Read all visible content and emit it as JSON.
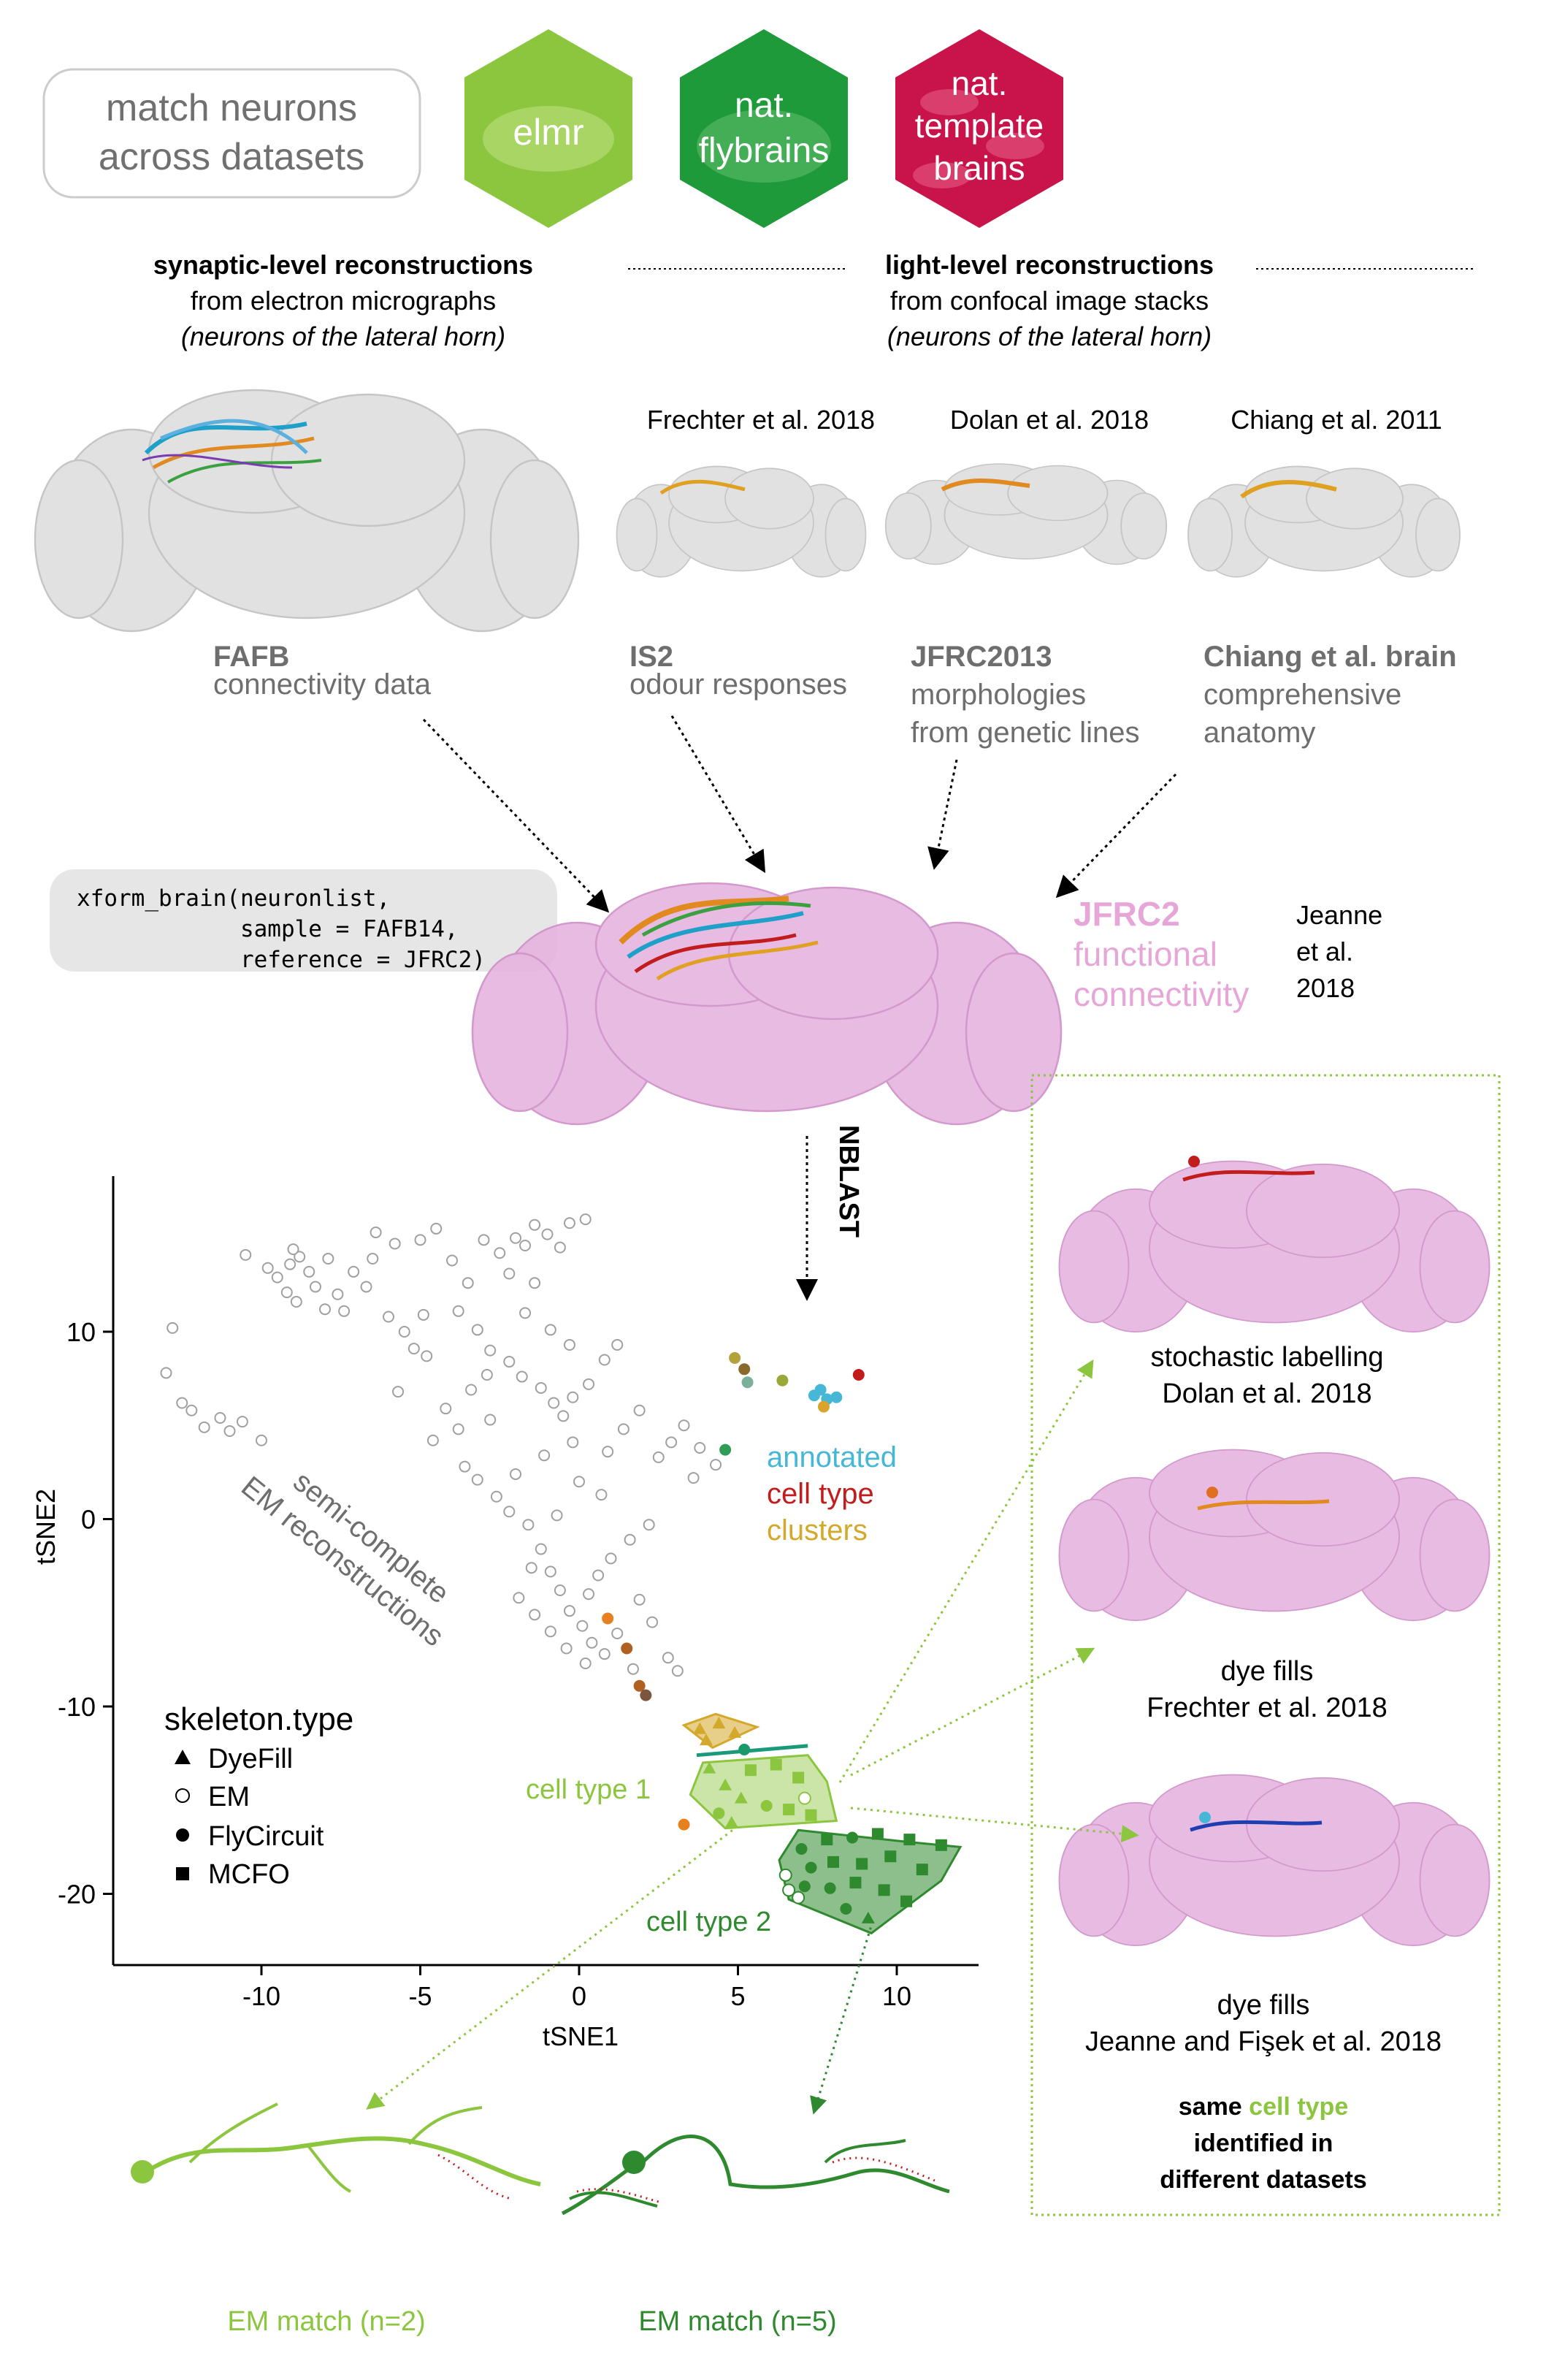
{
  "header": {
    "pill_line1": "match neurons",
    "pill_line2": "across datasets",
    "hex_elmr": "elmr",
    "hex_flybrains_l1": "nat.",
    "hex_flybrains_l2": "flybrains",
    "hex_templates_l1": "nat.",
    "hex_templates_l2": "template",
    "hex_templates_l3": "brains"
  },
  "em_section": {
    "title": "synaptic-level reconstructions",
    "line2": "from electron micrographs",
    "line3": "(neurons of the lateral horn)"
  },
  "lm_section": {
    "title": "light-level reconstructions",
    "line2": "from confocal image stacks",
    "line3": "(neurons of the lateral horn)"
  },
  "datasets": [
    {
      "citation": "",
      "brain": "FAFB",
      "desc1": "connectivity data",
      "desc2": ""
    },
    {
      "citation": "Frechter et al. 2018",
      "brain": "IS2",
      "desc1": "odour responses",
      "desc2": ""
    },
    {
      "citation": "Dolan et al. 2018",
      "brain": "JFRC2013",
      "desc1": "morphologies",
      "desc2": "from genetic lines"
    },
    {
      "citation": "Chiang et al. 2011",
      "brain": "Chiang et al. brain",
      "desc1": "comprehensive",
      "desc2": "anatomy"
    }
  ],
  "code": {
    "line1": "xform_brain(neuronlist,",
    "line2": "            sample = FAFB14,",
    "line3": "            reference = JFRC2)"
  },
  "jfrc2": {
    "l1": "JFRC2",
    "l2": "functional",
    "l3": "connectivity",
    "cite1": "Jeanne",
    "cite2": "et al.",
    "cite3": "2018"
  },
  "nblast_label": "NBLAST",
  "plot": {
    "ylabel": "tSNE2",
    "xlabel": "tSNE1",
    "legend_title": "skeleton.type",
    "legend_items": [
      "DyeFill",
      "EM",
      "FlyCircuit",
      "MCFO"
    ],
    "annot1": "annotated",
    "annot2": "cell type",
    "annot3": "clusters",
    "semi1": "semi-complete",
    "semi2": "EM reconstructions",
    "cell_type1": "cell type 1",
    "cell_type2": "cell type 2"
  },
  "chart_data": {
    "type": "scatter",
    "xlabel": "tSNE1",
    "ylabel": "tSNE2",
    "xlim": [
      -14,
      14
    ],
    "ylim": [
      -24,
      18
    ],
    "xticks": [
      -10,
      -5,
      0,
      5,
      10
    ],
    "yticks": [
      10,
      0,
      -10,
      -20
    ],
    "em_points": [
      [
        -13.0,
        7.8
      ],
      [
        -12.8,
        10.2
      ],
      [
        -12.5,
        6.2
      ],
      [
        -12.2,
        5.8
      ],
      [
        -11.8,
        4.9
      ],
      [
        -11.3,
        5.4
      ],
      [
        -11.0,
        4.7
      ],
      [
        -10.6,
        5.2
      ],
      [
        -10.0,
        4.2
      ],
      [
        -10.5,
        14.1
      ],
      [
        -9.8,
        13.4
      ],
      [
        -9.5,
        12.9
      ],
      [
        -9.1,
        13.6
      ],
      [
        -8.8,
        14.0
      ],
      [
        -8.5,
        13.2
      ],
      [
        -9.2,
        12.1
      ],
      [
        -8.9,
        11.6
      ],
      [
        -8.3,
        12.4
      ],
      [
        -8.0,
        11.2
      ],
      [
        -7.6,
        12.0
      ],
      [
        -7.4,
        11.1
      ],
      [
        -7.1,
        13.2
      ],
      [
        -6.5,
        13.9
      ],
      [
        -6.0,
        10.8
      ],
      [
        -5.5,
        10.0
      ],
      [
        -5.2,
        9.1
      ],
      [
        -4.8,
        8.7
      ],
      [
        -6.4,
        15.3
      ],
      [
        -5.8,
        14.7
      ],
      [
        -5.0,
        14.9
      ],
      [
        -4.5,
        15.5
      ],
      [
        -4.0,
        13.8
      ],
      [
        -3.5,
        12.6
      ],
      [
        -3.0,
        14.9
      ],
      [
        -2.5,
        14.2
      ],
      [
        -2.0,
        15.0
      ],
      [
        -1.7,
        14.6
      ],
      [
        -1.4,
        15.7
      ],
      [
        -1.0,
        15.2
      ],
      [
        -0.6,
        14.5
      ],
      [
        -0.3,
        15.8
      ],
      [
        0.2,
        16.0
      ],
      [
        -3.8,
        11.1
      ],
      [
        -3.2,
        10.1
      ],
      [
        -2.8,
        9.0
      ],
      [
        -2.2,
        8.4
      ],
      [
        -1.8,
        7.6
      ],
      [
        -1.2,
        7.0
      ],
      [
        -0.8,
        6.2
      ],
      [
        -0.5,
        5.5
      ],
      [
        -0.2,
        6.5
      ],
      [
        0.3,
        7.2
      ],
      [
        0.8,
        8.5
      ],
      [
        1.2,
        9.3
      ],
      [
        -4.2,
        5.9
      ],
      [
        -3.8,
        4.8
      ],
      [
        -3.6,
        2.8
      ],
      [
        -3.2,
        2.1
      ],
      [
        -2.6,
        1.2
      ],
      [
        -2.2,
        0.4
      ],
      [
        -1.6,
        -0.3
      ],
      [
        -1.2,
        -1.6
      ],
      [
        -0.9,
        -2.8
      ],
      [
        -0.6,
        -3.8
      ],
      [
        -0.3,
        -4.9
      ],
      [
        0.1,
        -5.7
      ],
      [
        0.4,
        -6.6
      ],
      [
        0.8,
        -7.2
      ],
      [
        1.2,
        -6.1
      ],
      [
        -1.9,
        -4.2
      ],
      [
        -1.4,
        -5.1
      ],
      [
        -0.9,
        -6.0
      ],
      [
        -0.4,
        -6.9
      ],
      [
        0.3,
        -4.0
      ],
      [
        0.6,
        -3.0
      ],
      [
        1.0,
        -2.1
      ],
      [
        1.6,
        -1.1
      ],
      [
        2.2,
        -0.3
      ],
      [
        1.9,
        -4.3
      ],
      [
        2.3,
        -5.5
      ],
      [
        2.8,
        -7.4
      ],
      [
        3.1,
        -8.1
      ],
      [
        2.5,
        3.3
      ],
      [
        2.9,
        4.1
      ],
      [
        3.3,
        5.0
      ],
      [
        3.8,
        3.8
      ],
      [
        4.3,
        2.9
      ],
      [
        1.9,
        5.8
      ],
      [
        1.4,
        4.8
      ],
      [
        0.9,
        3.6
      ],
      [
        -0.2,
        4.1
      ],
      [
        -1.1,
        3.4
      ],
      [
        -2.8,
        5.3
      ],
      [
        -3.4,
        6.9
      ],
      [
        -2.9,
        7.7
      ],
      [
        -1.7,
        11.0
      ],
      [
        -0.9,
        10.1
      ],
      [
        -0.3,
        9.3
      ],
      [
        -1.4,
        12.6
      ],
      [
        -2.2,
        13.1
      ],
      [
        -4.9,
        10.9
      ],
      [
        -6.7,
        12.4
      ],
      [
        -7.9,
        13.9
      ],
      [
        -9.0,
        14.4
      ],
      [
        -5.7,
        6.8
      ],
      [
        -4.6,
        4.2
      ],
      [
        -2.0,
        2.4
      ],
      [
        0.0,
        2.0
      ],
      [
        0.7,
        1.3
      ],
      [
        -0.7,
        0.2
      ],
      [
        -1.5,
        -2.6
      ],
      [
        0.2,
        -7.7
      ],
      [
        1.7,
        -8.0
      ],
      [
        3.6,
        2.2
      ]
    ],
    "coloured_points": [
      {
        "x": 4.9,
        "y": 8.6,
        "color": "#b3a23c"
      },
      {
        "x": 5.2,
        "y": 8.0,
        "color": "#8a6a2c"
      },
      {
        "x": 5.3,
        "y": 7.3,
        "color": "#7bb09a"
      },
      {
        "x": 6.4,
        "y": 7.4,
        "color": "#9aa83a"
      },
      {
        "x": 7.4,
        "y": 6.6,
        "color": "#46b7d6"
      },
      {
        "x": 7.6,
        "y": 6.9,
        "color": "#46b7d6"
      },
      {
        "x": 7.8,
        "y": 6.4,
        "color": "#46b7d6"
      },
      {
        "x": 7.7,
        "y": 6.0,
        "color": "#d9a42a"
      },
      {
        "x": 8.1,
        "y": 6.5,
        "color": "#46b7d6"
      },
      {
        "x": 8.8,
        "y": 7.7,
        "color": "#c21d1d"
      },
      {
        "x": 4.6,
        "y": 3.7,
        "color": "#2f9c57"
      },
      {
        "x": 0.9,
        "y": -5.3,
        "color": "#e7801e"
      },
      {
        "x": 1.5,
        "y": -6.9,
        "color": "#b06020"
      },
      {
        "x": 1.9,
        "y": -8.9,
        "color": "#b06020"
      },
      {
        "x": 2.1,
        "y": -9.4,
        "color": "#7a5640"
      },
      {
        "x": 3.3,
        "y": -16.3,
        "color": "#e7801e"
      },
      {
        "x": 5.2,
        "y": -12.3,
        "color": "#1a9a6a"
      }
    ],
    "cluster_1": {
      "color": "#8cc63f",
      "hull": [
        [
          3.9,
          -13.0
        ],
        [
          7.2,
          -12.6
        ],
        [
          7.8,
          -14.0
        ],
        [
          8.1,
          -16.1
        ],
        [
          4.6,
          -16.5
        ],
        [
          3.5,
          -14.7
        ]
      ],
      "points": [
        {
          "x": 4.1,
          "y": -13.3,
          "s": "tri"
        },
        {
          "x": 4.6,
          "y": -14.2,
          "s": "tri"
        },
        {
          "x": 5.4,
          "y": -13.4,
          "s": "sq"
        },
        {
          "x": 6.2,
          "y": -13.1,
          "s": "sq"
        },
        {
          "x": 6.9,
          "y": -13.8,
          "s": "sq"
        },
        {
          "x": 5.1,
          "y": -14.9,
          "s": "tri"
        },
        {
          "x": 5.9,
          "y": -15.3,
          "s": "circ"
        },
        {
          "x": 6.6,
          "y": -15.5,
          "s": "sq"
        },
        {
          "x": 4.4,
          "y": -15.7,
          "s": "circ"
        },
        {
          "x": 7.3,
          "y": -15.8,
          "s": "sq"
        },
        {
          "x": 4.8,
          "y": -16.2,
          "s": "tri"
        },
        {
          "x": 7.1,
          "y": -14.9,
          "s": "open"
        }
      ]
    },
    "cluster_2": {
      "color": "#2f8a2f",
      "hull": [
        [
          6.9,
          -16.6
        ],
        [
          10.2,
          -17.2
        ],
        [
          12.0,
          -17.5
        ],
        [
          11.4,
          -19.3
        ],
        [
          9.9,
          -21.2
        ],
        [
          9.2,
          -22.1
        ],
        [
          6.6,
          -20.3
        ],
        [
          6.3,
          -18.2
        ]
      ],
      "points": [
        {
          "x": 7.0,
          "y": -17.6,
          "s": "circ"
        },
        {
          "x": 7.8,
          "y": -17.1,
          "s": "sq"
        },
        {
          "x": 8.6,
          "y": -17.0,
          "s": "circ"
        },
        {
          "x": 9.4,
          "y": -16.8,
          "s": "sq"
        },
        {
          "x": 10.4,
          "y": -17.1,
          "s": "sq"
        },
        {
          "x": 11.4,
          "y": -17.4,
          "s": "sq"
        },
        {
          "x": 7.3,
          "y": -18.6,
          "s": "circ"
        },
        {
          "x": 8.0,
          "y": -18.3,
          "s": "sq"
        },
        {
          "x": 8.9,
          "y": -18.4,
          "s": "sq"
        },
        {
          "x": 9.8,
          "y": -18.0,
          "s": "sq"
        },
        {
          "x": 10.8,
          "y": -18.7,
          "s": "sq"
        },
        {
          "x": 7.1,
          "y": -19.6,
          "s": "circ"
        },
        {
          "x": 7.9,
          "y": -19.7,
          "s": "circ"
        },
        {
          "x": 8.7,
          "y": -19.4,
          "s": "sq"
        },
        {
          "x": 9.6,
          "y": -19.8,
          "s": "sq"
        },
        {
          "x": 10.3,
          "y": -20.4,
          "s": "sq"
        },
        {
          "x": 8.4,
          "y": -20.8,
          "s": "circ"
        },
        {
          "x": 9.1,
          "y": -21.3,
          "s": "tri"
        },
        {
          "x": 6.5,
          "y": -19.0,
          "s": "open"
        },
        {
          "x": 6.6,
          "y": -19.8,
          "s": "open"
        },
        {
          "x": 6.9,
          "y": -20.2,
          "s": "open"
        }
      ]
    },
    "cluster_yellow": {
      "color": "#d4a82a",
      "hull": [
        [
          3.3,
          -11.0
        ],
        [
          4.3,
          -10.4
        ],
        [
          5.6,
          -11.1
        ],
        [
          4.2,
          -12.2
        ]
      ],
      "points": [
        {
          "x": 3.8,
          "y": -11.2,
          "s": "tri"
        },
        {
          "x": 4.4,
          "y": -10.9,
          "s": "tri"
        },
        {
          "x": 4.9,
          "y": -11.4,
          "s": "tri"
        },
        {
          "x": 4.0,
          "y": -11.8,
          "s": "tri"
        }
      ]
    },
    "cluster_teal": {
      "color": "#1a9a7a",
      "segment": [
        [
          3.7,
          -12.6
        ],
        [
          7.2,
          -12.1
        ]
      ]
    }
  },
  "panels": [
    {
      "l1": "stochastic labelling",
      "l2": "Dolan et al. 2018"
    },
    {
      "l1": "dye fills",
      "l2": "Frechter et al. 2018"
    },
    {
      "l1": "dye fills",
      "l2": "Jeanne and Fişek et al. 2018"
    }
  ],
  "same_cell": {
    "l1a": "same ",
    "l1b": "cell type",
    "l2": "identified in",
    "l3": "different datasets"
  },
  "em_match": {
    "left": "EM match (n=2)",
    "right": "EM match (n=5)"
  },
  "colors": {
    "light_green": "#8cc63f",
    "dark_green": "#2f8a2f",
    "pink_brain": "#e6b4e0",
    "pink_text": "#e6a7d8",
    "grey_text": "#6e6e6e",
    "hex_elmr": "#8cc63f",
    "hex_flybrains": "#1f9a3a",
    "hex_templates": "#c8144a"
  }
}
